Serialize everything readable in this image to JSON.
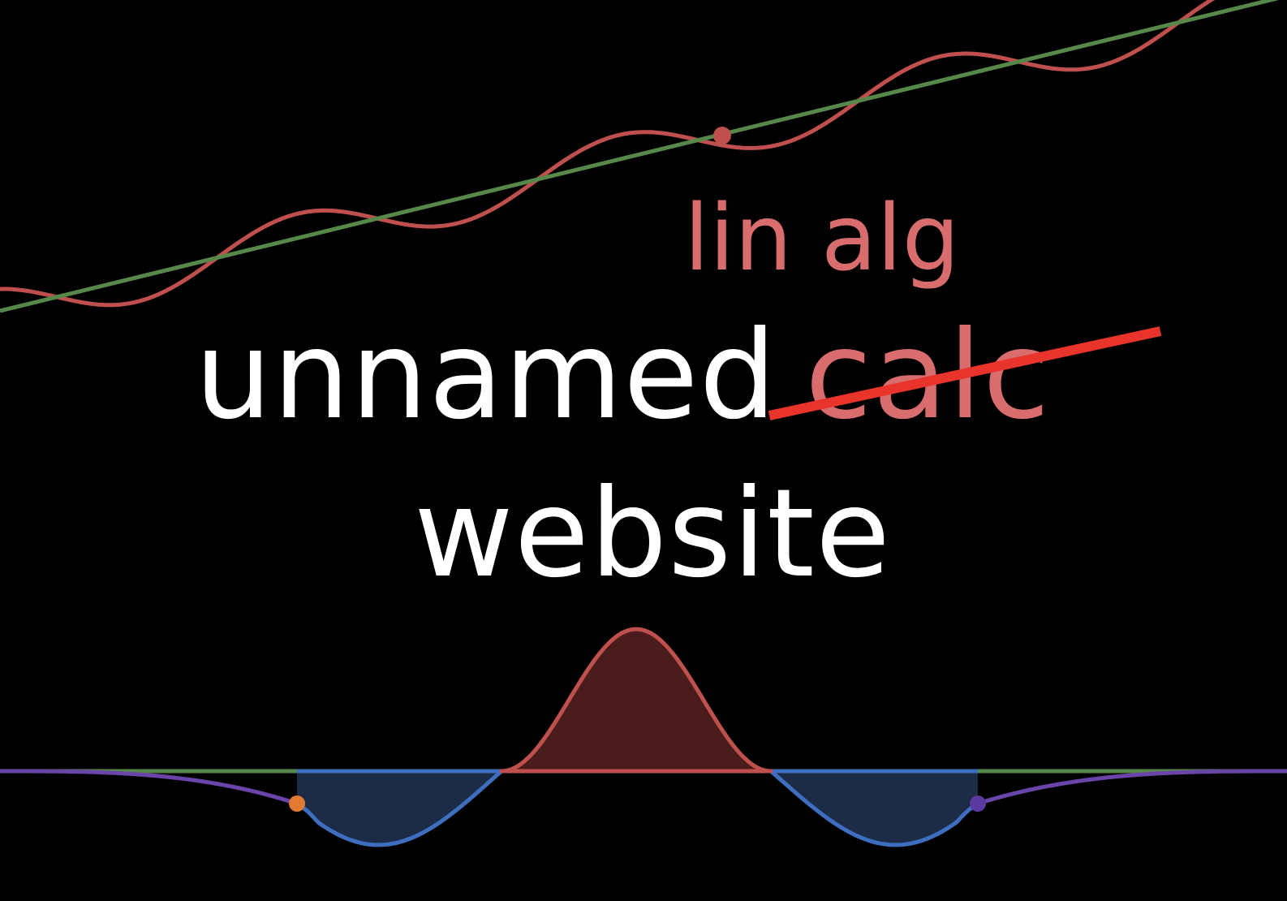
{
  "title": {
    "line1_word": "unnamed",
    "struck_word": "calc",
    "replacement_word": "lin alg",
    "line2_word": "website"
  },
  "colors": {
    "background": "#000000",
    "text": "#ffffff",
    "accent_text": "#d96d6d",
    "strike": "#e8342a",
    "red_curve": "#c0504d",
    "red_fill": "#4a1d1c",
    "green_line": "#56884a",
    "blue_curve": "#3e6ec0",
    "blue_fill": "#1c2c46",
    "purple_curve": "#6a44a8",
    "orange_point": "#e07a30",
    "purple_point": "#5a3aa0"
  }
}
